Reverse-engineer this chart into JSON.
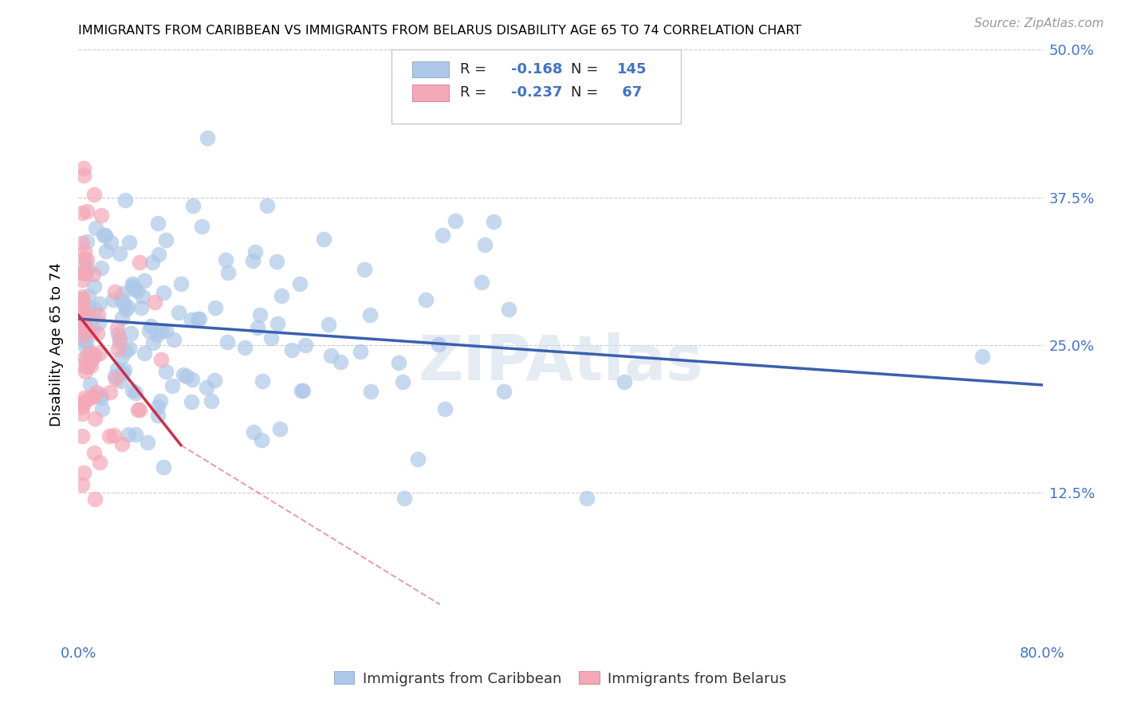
{
  "title": "IMMIGRANTS FROM CARIBBEAN VS IMMIGRANTS FROM BELARUS DISABILITY AGE 65 TO 74 CORRELATION CHART",
  "source": "Source: ZipAtlas.com",
  "ylabel": "Disability Age 65 to 74",
  "xlim": [
    0,
    0.8
  ],
  "ylim": [
    0,
    0.5
  ],
  "legend1_label": "Immigrants from Caribbean",
  "legend2_label": "Immigrants from Belarus",
  "r1": -0.168,
  "n1": 145,
  "r2": -0.237,
  "n2": 67,
  "color1": "#adc8e8",
  "color2": "#f4a8b8",
  "line_color1": "#3a5faf",
  "line_color2": "#c8304a",
  "watermark": "ZIPAtlas",
  "blue_line_x0": 0.0,
  "blue_line_y0": 0.272,
  "blue_line_x1": 0.8,
  "blue_line_y1": 0.216,
  "pink_line_solid_x0": 0.0,
  "pink_line_solid_y0": 0.275,
  "pink_line_solid_x1": 0.085,
  "pink_line_solid_y1": 0.165,
  "pink_line_dash_x1": 0.3,
  "pink_line_dash_y1": 0.03
}
